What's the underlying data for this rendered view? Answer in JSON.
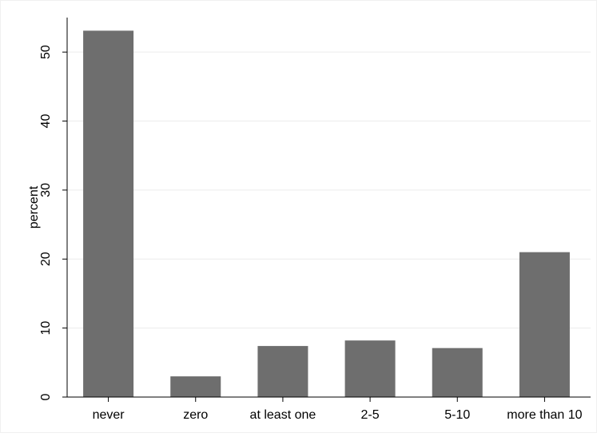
{
  "chart_data": {
    "type": "bar",
    "title": "",
    "xlabel": "",
    "ylabel": "percent",
    "categories": [
      "never",
      "zero",
      "at least one",
      "2-5",
      "5-10",
      "more than 10"
    ],
    "values": [
      53.1,
      3.0,
      7.4,
      8.2,
      7.1,
      21.0
    ],
    "ylim": [
      0,
      55
    ],
    "yticks": [
      0,
      10,
      20,
      30,
      40,
      50
    ],
    "grid": true,
    "legend": "none",
    "bar_color": "#6e6e6e",
    "grid_color": "#ececec"
  }
}
